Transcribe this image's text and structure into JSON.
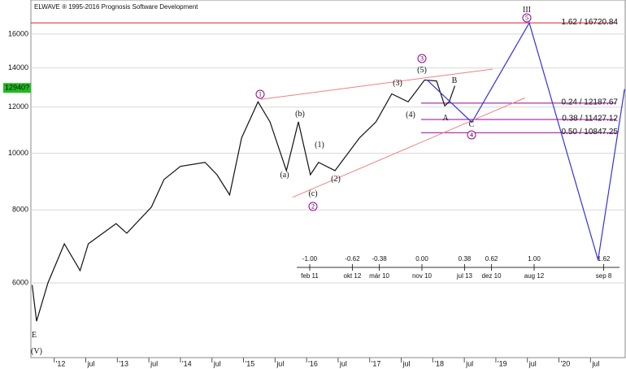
{
  "chart_data": {
    "type": "line",
    "title": "ELWAVE ® 1995-2016 Prognosis Software Development",
    "log_scale": true,
    "grid": true,
    "color": "#111111",
    "x": [
      2011.65,
      2011.72,
      2011.9,
      2012.16,
      2012.41,
      2012.54,
      2012.98,
      2013.15,
      2013.54,
      2013.74,
      2014.0,
      2014.39,
      2014.58,
      2014.78,
      2014.97,
      2015.23,
      2015.42,
      2015.68,
      2015.87,
      2016.06,
      2016.19,
      2016.45,
      2016.84,
      2017.1,
      2017.35,
      2017.61,
      2017.87,
      2018.06,
      2018.19,
      2018.26,
      2018.35
    ],
    "values": [
      5950,
      5160,
      6000,
      7000,
      6300,
      7000,
      7580,
      7300,
      8090,
      9020,
      9500,
      9650,
      9190,
      8490,
      10630,
      12250,
      11320,
      9340,
      11320,
      9190,
      9650,
      9340,
      10630,
      11320,
      12640,
      12250,
      13350,
      13300,
      12060,
      12250,
      13050
    ],
    "last_price": {
      "value": 12940,
      "label": "12940?"
    },
    "xlim": [
      2011.63,
      2021.05
    ],
    "ylim": [
      4470,
      18300
    ],
    "yticks": [
      6000,
      8000,
      10000,
      12000,
      14000,
      16000
    ],
    "xticks": [
      {
        "value": 2012,
        "label": "'12"
      },
      {
        "value": 2012.5,
        "label": "jul"
      },
      {
        "value": 2013,
        "label": "'13"
      },
      {
        "value": 2013.5,
        "label": "jul"
      },
      {
        "value": 2014,
        "label": "'14"
      },
      {
        "value": 2014.5,
        "label": "jul"
      },
      {
        "value": 2015,
        "label": "'15"
      },
      {
        "value": 2015.5,
        "label": "jul"
      },
      {
        "value": 2016,
        "label": "'16"
      },
      {
        "value": 2016.5,
        "label": "jul"
      },
      {
        "value": 2017,
        "label": "'17"
      },
      {
        "value": 2017.5,
        "label": "jul"
      },
      {
        "value": 2018,
        "label": "'18"
      },
      {
        "value": 2018.5,
        "label": "jul"
      },
      {
        "value": 2019,
        "label": "'19"
      },
      {
        "value": 2019.5,
        "label": "jul"
      },
      {
        "value": 2020,
        "label": "'20"
      },
      {
        "value": 2020.5,
        "label": "jul"
      }
    ],
    "projection": {
      "color": "#3333dd",
      "x": [
        2017.91,
        2018.62,
        2019.53,
        2020.62,
        2021.04
      ],
      "values": [
        13350,
        11300,
        16720,
        6570,
        12880
      ]
    },
    "channel": {
      "color": "#f08080",
      "lines": [
        {
          "x": [
            2015.27,
            2018.95
          ],
          "values": [
            12370,
            13940
          ]
        },
        {
          "x": [
            2015.78,
            2019.46
          ],
          "values": [
            8410,
            12440
          ]
        }
      ]
    },
    "levels": [
      {
        "value": 16720.84,
        "label": "1.62 / 16720.84",
        "color": "#cc2233"
      },
      {
        "value": 12187.67,
        "label": "0.24 / 12187.67",
        "color": "#990099"
      },
      {
        "value": 11427.12,
        "label": "0.38 / 11427.12",
        "color": "#990099"
      },
      {
        "value": 10847.25,
        "label": "0.50 / 10847.25",
        "color": "#990099"
      }
    ],
    "wave_labels": [
      "1",
      "2",
      "3",
      "4",
      "5",
      "(a)",
      "(b)",
      "(c)",
      "(1)",
      "(2)",
      "(3)",
      "(4)",
      "(5)",
      "A",
      "B",
      "C",
      "III",
      "E",
      "(V)"
    ],
    "time_ratios": [
      {
        "ratio": {
          "value": -1,
          "label": "-1.00"
        },
        "date": "feb 11"
      },
      {
        "ratio": {
          "value": -0.62,
          "label": "-0.62"
        },
        "date": "okt 12"
      },
      {
        "ratio": {
          "value": -0.38,
          "label": "-0.38"
        },
        "date": "már 10"
      },
      {
        "ratio": {
          "value": 0,
          "label": "0.00"
        },
        "date": "nov 10"
      },
      {
        "ratio": {
          "value": 0.38,
          "label": "0.38"
        },
        "date": "jul 13"
      },
      {
        "ratio": {
          "value": 0.62,
          "label": "0.62"
        },
        "date": "dez 10"
      },
      {
        "ratio": {
          "value": 1,
          "label": "1.00"
        },
        "date": "aug 12"
      },
      {
        "ratio": {
          "value": 1.62,
          "label": "1.62"
        },
        "date": "sep 8"
      }
    ]
  }
}
